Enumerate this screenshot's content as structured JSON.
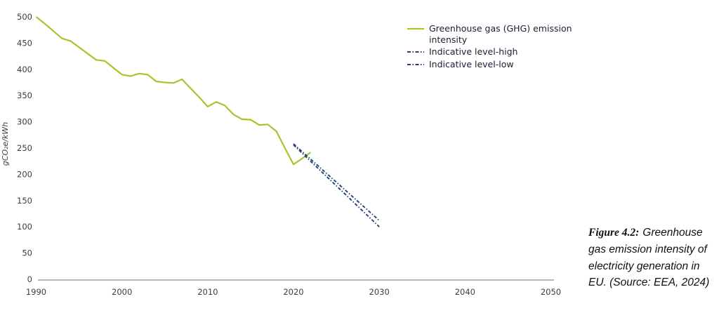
{
  "chart_data": {
    "type": "line",
    "title": "",
    "xlabel": "",
    "ylabel": "gCO₂e/kWh",
    "xlim": [
      1990,
      2050
    ],
    "ylim": [
      0,
      500
    ],
    "grid": false,
    "legend_position": "top-right",
    "x_ticks": [
      "1990",
      "2000",
      "2010",
      "2020",
      "2030",
      "2040",
      "2050"
    ],
    "y_ticks": [
      0,
      50,
      100,
      150,
      200,
      250,
      300,
      350,
      400,
      450,
      500
    ],
    "series": [
      {
        "name": "Greenhouse gas (GHG) emission intensity",
        "style": "solid",
        "color": "#a9c42a",
        "x": [
          1990,
          1991,
          1992,
          1993,
          1994,
          1995,
          1996,
          1997,
          1998,
          1999,
          2000,
          2001,
          2002,
          2003,
          2004,
          2005,
          2006,
          2007,
          2008,
          2009,
          2010,
          2011,
          2012,
          2013,
          2014,
          2015,
          2016,
          2017,
          2018,
          2019,
          2020,
          2021,
          2022
        ],
        "values": [
          500,
          487,
          473,
          459,
          454,
          442,
          430,
          418,
          416,
          403,
          390,
          387,
          392,
          390,
          377,
          375,
          374,
          381,
          364,
          347,
          329,
          338,
          331,
          314,
          305,
          304,
          294,
          295,
          282,
          250,
          219,
          230,
          242
        ]
      },
      {
        "name": "Indicative level-high",
        "style": "dash-dot",
        "color": "#254078",
        "x": [
          2020,
          2030
        ],
        "values": [
          258,
          112
        ]
      },
      {
        "name": "Indicative level-low",
        "style": "dash-dot",
        "color": "#254078",
        "x": [
          2020,
          2030
        ],
        "values": [
          256,
          100
        ]
      }
    ]
  },
  "legend": {
    "items": [
      {
        "label": "Greenhouse gas (GHG) emission intensity",
        "swatch": "solid-line",
        "color": "#a9c42a"
      },
      {
        "label": "Indicative level-high",
        "swatch": "dash-dot-line",
        "color": "#254078"
      },
      {
        "label": "Indicative level-low",
        "swatch": "dash-dot-line",
        "color": "#254078"
      }
    ]
  },
  "caption": {
    "label": "Figure 4.2:",
    "text": "Greenhouse gas emission intensity of electricity generation in EU. (Source: EEA, 2024)"
  },
  "colors": {
    "ghg_line": "#a9c42a",
    "indicative_line": "#254078",
    "axis_line": "#9e9e9e",
    "tick_text": "#3d3d3d",
    "legend_text": "#1c1c30",
    "caption_text": "#111111"
  }
}
